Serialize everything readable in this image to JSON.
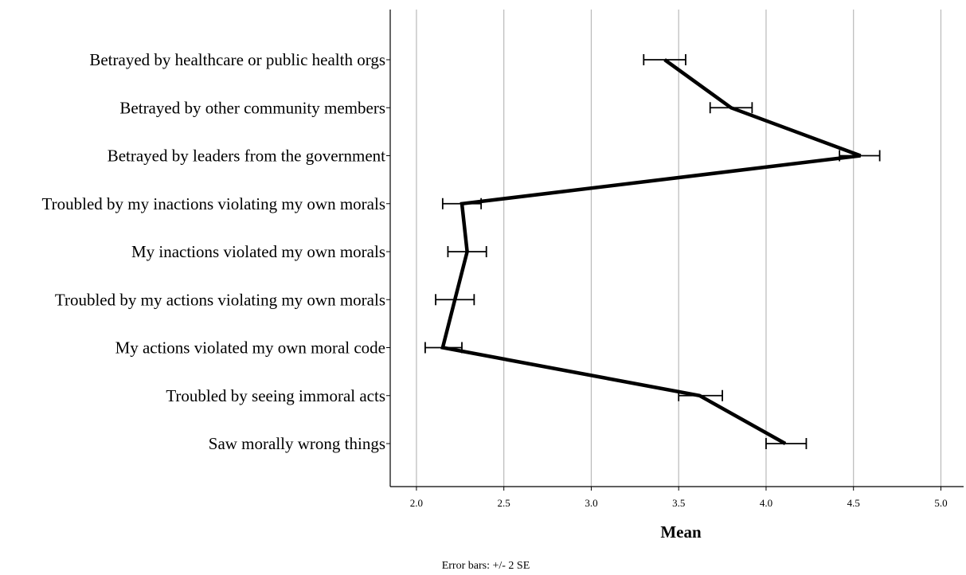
{
  "chart_data": {
    "type": "line",
    "orientation": "horizontal",
    "categories": [
      "Betrayed by healthcare or public health orgs",
      "Betrayed by other community members",
      "Betrayed by leaders from the government",
      "Troubled by my inactions violating my own morals",
      "My inactions violated my own morals",
      "Troubled by my actions violating my own morals",
      "My actions violated my own moral code",
      "Troubled by seeing immoral acts",
      "Saw morally wrong things"
    ],
    "means": [
      3.42,
      3.8,
      4.54,
      2.26,
      2.29,
      2.22,
      2.15,
      3.62,
      4.11
    ],
    "error_low": [
      3.3,
      3.68,
      4.42,
      2.15,
      2.18,
      2.11,
      2.05,
      3.5,
      4.0
    ],
    "error_high": [
      3.54,
      3.92,
      4.65,
      2.37,
      2.4,
      2.33,
      2.26,
      3.75,
      4.23
    ],
    "xlabel": "Mean",
    "xlim": [
      1.85,
      5.13
    ],
    "xticks": [
      "2.0",
      "2.5",
      "3.0",
      "3.5",
      "4.0",
      "4.5",
      "5.0"
    ],
    "xtick_values": [
      2.0,
      2.5,
      3.0,
      3.5,
      4.0,
      4.5,
      5.0
    ],
    "grid": "vertical",
    "note": "Error bars: +/- 2 SE",
    "line_color": "#000000",
    "grid_color": "#b9b9b9"
  }
}
